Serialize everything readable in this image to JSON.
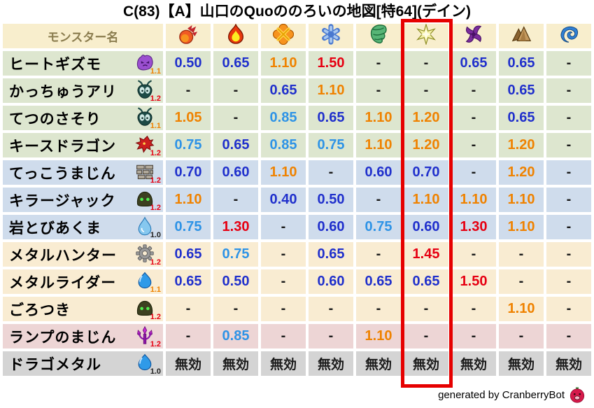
{
  "title": "C(83)【A】山口のQuoののろいの地図[特64](デイン)",
  "chart_data": {
    "type": "table",
    "title": "C(83)【A】山口のQuoののろいの地図[特64](デイン)",
    "columns": [
      {
        "key": "monster",
        "label": "モンスター名",
        "icon": null
      },
      {
        "key": "fireball",
        "label": "",
        "icon": "fireball-icon"
      },
      {
        "key": "flame",
        "label": "",
        "icon": "flame-icon"
      },
      {
        "key": "explosion",
        "label": "",
        "icon": "explosion-icon"
      },
      {
        "key": "ice",
        "label": "",
        "icon": "snowflake-icon"
      },
      {
        "key": "wind",
        "label": "",
        "icon": "tornado-icon"
      },
      {
        "key": "lightning",
        "label": "",
        "icon": "lightning-star-icon"
      },
      {
        "key": "dark",
        "label": "",
        "icon": "pinwheel-icon"
      },
      {
        "key": "earth",
        "label": "",
        "icon": "mountain-icon"
      },
      {
        "key": "water",
        "label": "",
        "icon": "wave-icon"
      }
    ],
    "highlight": {
      "column_key": "lightning",
      "column_index": 5,
      "style": "red-box"
    },
    "rows": [
      {
        "name": "ヒートギズモ",
        "monster_icon": "gizmo-icon",
        "multiplier": "1.1",
        "multiplier_tone": "orange",
        "group": "green",
        "values": [
          "0.50",
          "0.65",
          "1.10",
          "1.50",
          "-",
          "-",
          "0.65",
          "0.65",
          "-"
        ],
        "tones": [
          "low",
          "low",
          "high",
          "max",
          "none",
          "none",
          "low",
          "low",
          "none"
        ]
      },
      {
        "name": "かっちゅうアリ",
        "monster_icon": "ant-icon",
        "multiplier": "1.2",
        "multiplier_tone": "red",
        "group": "green",
        "values": [
          "-",
          "-",
          "0.65",
          "1.10",
          "-",
          "-",
          "-",
          "0.65",
          "-"
        ],
        "tones": [
          "none",
          "none",
          "low",
          "high",
          "none",
          "none",
          "none",
          "low",
          "none"
        ]
      },
      {
        "name": "てつのさそり",
        "monster_icon": "ant-icon",
        "multiplier": "1.1",
        "multiplier_tone": "orange",
        "group": "green",
        "values": [
          "1.05",
          "-",
          "0.85",
          "0.65",
          "1.10",
          "1.20",
          "-",
          "0.65",
          "-"
        ],
        "tones": [
          "high",
          "none",
          "mid",
          "low",
          "high",
          "high",
          "none",
          "low",
          "none"
        ]
      },
      {
        "name": "キースドラゴン",
        "monster_icon": "dragon-icon",
        "multiplier": "1.2",
        "multiplier_tone": "red",
        "group": "green",
        "values": [
          "0.75",
          "0.65",
          "0.85",
          "0.75",
          "1.10",
          "1.20",
          "-",
          "1.20",
          "-"
        ],
        "tones": [
          "mid",
          "low",
          "mid",
          "mid",
          "high",
          "high",
          "none",
          "high",
          "none"
        ]
      },
      {
        "name": "てっこうまじん",
        "monster_icon": "brick-wall-icon",
        "multiplier": "1.2",
        "multiplier_tone": "red",
        "group": "blue",
        "values": [
          "0.70",
          "0.60",
          "1.10",
          "-",
          "0.60",
          "0.70",
          "-",
          "1.20",
          "-"
        ],
        "tones": [
          "low",
          "low",
          "high",
          "none",
          "low",
          "low",
          "none",
          "high",
          "none"
        ]
      },
      {
        "name": "キラージャック",
        "monster_icon": "helmet-icon",
        "multiplier": "1.2",
        "multiplier_tone": "red",
        "group": "blue",
        "values": [
          "1.10",
          "-",
          "0.40",
          "0.50",
          "-",
          "1.10",
          "1.10",
          "1.10",
          "-"
        ],
        "tones": [
          "high",
          "none",
          "low",
          "low",
          "none",
          "high",
          "high",
          "high",
          "none"
        ]
      },
      {
        "name": "岩とびあくま",
        "monster_icon": "droplet-icon",
        "multiplier": "1.0",
        "multiplier_tone": "black",
        "group": "blue",
        "values": [
          "0.75",
          "1.30",
          "-",
          "0.60",
          "0.75",
          "0.60",
          "1.30",
          "1.10",
          "-"
        ],
        "tones": [
          "mid",
          "max",
          "none",
          "low",
          "mid",
          "low",
          "max",
          "high",
          "none"
        ]
      },
      {
        "name": "メタルハンター",
        "monster_icon": "gear-icon",
        "multiplier": "1.2",
        "multiplier_tone": "red",
        "group": "cream",
        "values": [
          "0.65",
          "0.75",
          "-",
          "0.65",
          "-",
          "1.45",
          "-",
          "-",
          "-"
        ],
        "tones": [
          "low",
          "mid",
          "none",
          "low",
          "none",
          "max",
          "none",
          "none",
          "none"
        ]
      },
      {
        "name": "メタルライダー",
        "monster_icon": "slime-icon",
        "multiplier": "1.1",
        "multiplier_tone": "orange",
        "group": "cream",
        "values": [
          "0.65",
          "0.50",
          "-",
          "0.60",
          "0.65",
          "0.65",
          "1.50",
          "-",
          "-"
        ],
        "tones": [
          "low",
          "low",
          "none",
          "low",
          "low",
          "low",
          "max",
          "none",
          "none"
        ]
      },
      {
        "name": "ごろつき",
        "monster_icon": "helmet-icon",
        "multiplier": "1.2",
        "multiplier_tone": "red",
        "group": "cream",
        "values": [
          "-",
          "-",
          "-",
          "-",
          "-",
          "-",
          "-",
          "1.10",
          "-"
        ],
        "tones": [
          "none",
          "none",
          "none",
          "none",
          "none",
          "none",
          "none",
          "high",
          "none"
        ]
      },
      {
        "name": "ランプのまじん",
        "monster_icon": "trident-icon",
        "multiplier": "1.2",
        "multiplier_tone": "red",
        "group": "pink",
        "values": [
          "-",
          "0.85",
          "-",
          "-",
          "1.10",
          "-",
          "-",
          "-",
          "-"
        ],
        "tones": [
          "none",
          "mid",
          "none",
          "none",
          "high",
          "none",
          "none",
          "none",
          "none"
        ]
      },
      {
        "name": "ドラゴメタル",
        "monster_icon": "slime-icon",
        "multiplier": "1.0",
        "multiplier_tone": "black",
        "group": "gray",
        "values": [
          "無効",
          "無効",
          "無効",
          "無効",
          "無効",
          "無効",
          "無効",
          "無効",
          "無効"
        ],
        "tones": [
          "immune",
          "immune",
          "immune",
          "immune",
          "immune",
          "immune",
          "immune",
          "immune",
          "immune"
        ]
      }
    ]
  },
  "footer": {
    "credit": "generated by CranberryBot",
    "icon": "cranberry-icon"
  },
  "palette": {
    "header_bg": "#f8eecd",
    "header_text": "#8a7c4e",
    "row_green": "#dde6cf",
    "row_blue": "#cfdcec",
    "row_cream": "#f9ecd2",
    "row_pink": "#edd5d5",
    "row_gray": "#d4d4d4",
    "value_low": "#2030cc",
    "value_mid": "#2e93e6",
    "value_high": "#ef8200",
    "value_max": "#e60012",
    "value_neutral": "#1a1a1a",
    "highlight_border": "#e60000",
    "multiplier_orange": "#ef8200",
    "multiplier_red": "#e60012",
    "multiplier_black": "#222222"
  }
}
